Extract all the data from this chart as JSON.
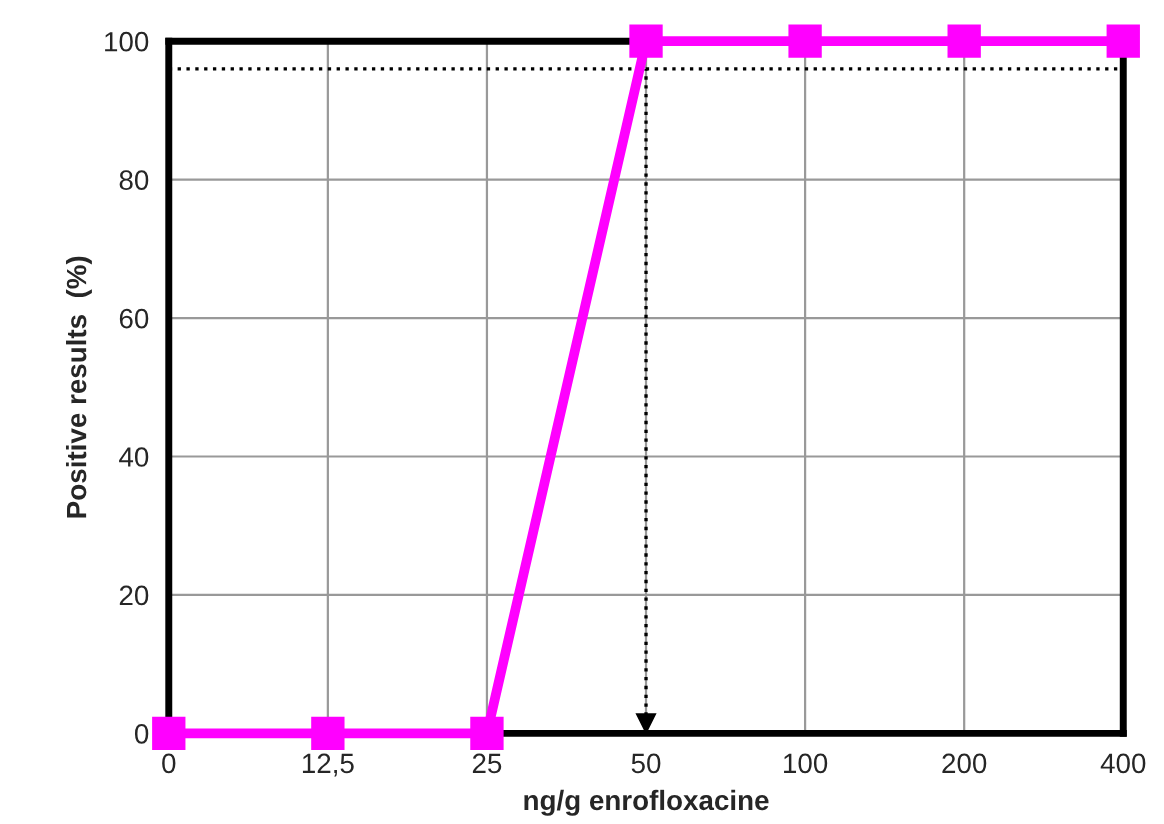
{
  "chart_data": {
    "type": "line",
    "xlabel": "ng/g enrofloxacine",
    "ylabel": "Positive results  (%)",
    "categories": [
      "0",
      "12,5",
      "25",
      "50",
      "100",
      "200",
      "400"
    ],
    "series": [
      {
        "color": "#ff00ff",
        "values": [
          0,
          0,
          0,
          100,
          100,
          100,
          100
        ]
      }
    ],
    "ylim": [
      0,
      100
    ],
    "yticks": [
      0,
      20,
      40,
      60,
      80,
      100
    ],
    "grid": true,
    "marker": "square",
    "line_style": "solid",
    "ref_lines": [
      {
        "axis": "y",
        "value": 96,
        "color": "#000000",
        "line_style": "dotted"
      },
      {
        "axis": "x",
        "value": "50",
        "color": "#000000",
        "line_style": "dotted"
      }
    ]
  }
}
